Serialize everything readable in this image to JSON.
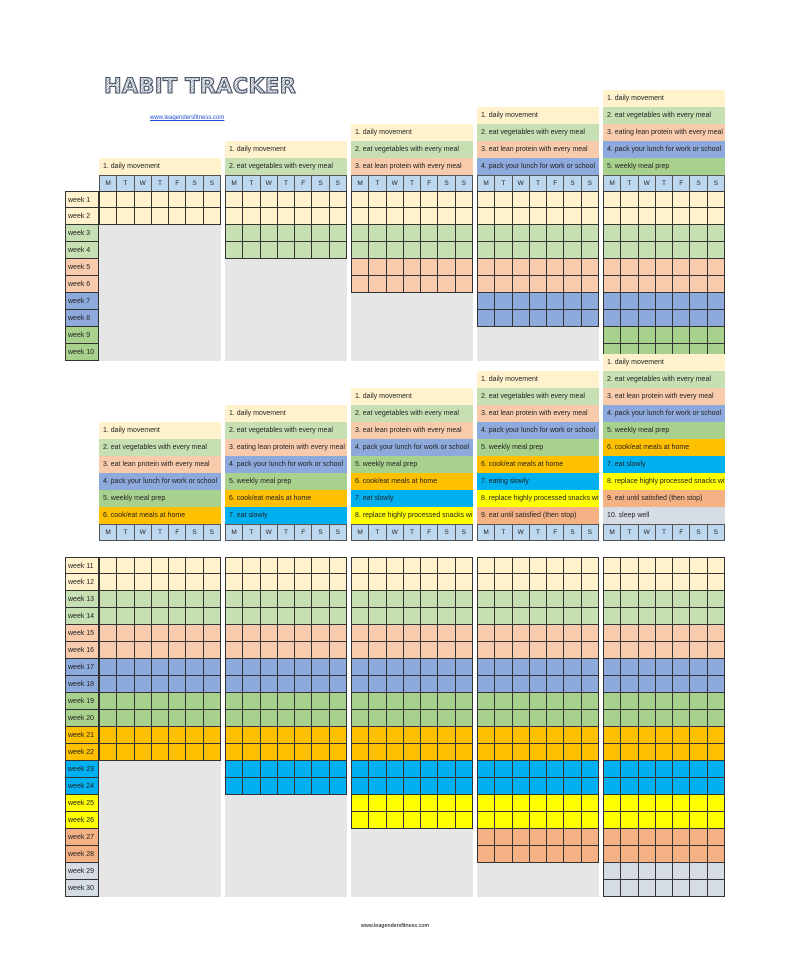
{
  "header": {
    "title": "HABIT TRACKER",
    "website_top": "www.leagendersfitness.com",
    "website_bottom": "www.leagendersfitness.com"
  },
  "colors": {
    "cream": "#fff2cc",
    "green": "#c6e0b4",
    "salmon": "#f8cbad",
    "blue": "#8ea9db",
    "mid_green": "#a9d18e",
    "orange": "#ffc000",
    "cyan": "#00b0f0",
    "yellow": "#ffff00",
    "peach": "#f4b183",
    "grey": "#d6dce4",
    "days_header": "#bdd7ee",
    "empty": "#e6e6e6"
  },
  "days": [
    "M",
    "T",
    "W",
    "T",
    "F",
    "S",
    "S"
  ],
  "sections": [
    {
      "week_start": 1,
      "week_count": 10,
      "week_colors": [
        "cream",
        "cream",
        "green",
        "green",
        "salmon",
        "salmon",
        "blue",
        "blue",
        "mid_green",
        "mid_green"
      ],
      "blocks": [
        {
          "habits": [
            {
              "label": "1. daily movement",
              "color": "cream"
            }
          ]
        },
        {
          "habits": [
            {
              "label": "1. daily movement",
              "color": "cream"
            },
            {
              "label": "2. eat vegetables with every meal",
              "color": "green"
            }
          ]
        },
        {
          "habits": [
            {
              "label": "1. daily movement",
              "color": "cream"
            },
            {
              "label": "2. eat vegetables with every meal",
              "color": "green"
            },
            {
              "label": "3. eat lean protein with every meal",
              "color": "salmon"
            }
          ]
        },
        {
          "habits": [
            {
              "label": "1. daily movement",
              "color": "cream"
            },
            {
              "label": "2. eat vegetables with every meal",
              "color": "green"
            },
            {
              "label": "3. eat lean protein with every meal",
              "color": "salmon"
            },
            {
              "label": "4. pack your lunch for work or school",
              "color": "blue"
            }
          ]
        },
        {
          "habits": [
            {
              "label": "1. daily movement",
              "color": "cream"
            },
            {
              "label": "2. eat vegetables with every meal",
              "color": "green"
            },
            {
              "label": "3. eating lean protein with every meal",
              "color": "salmon"
            },
            {
              "label": "4. pack your lunch for work or school",
              "color": "blue"
            },
            {
              "label": "5. weekly meal prep",
              "color": "mid_green"
            }
          ]
        }
      ]
    },
    {
      "week_start": 11,
      "week_count": 20,
      "week_colors": [
        "cream",
        "cream",
        "green",
        "green",
        "salmon",
        "salmon",
        "blue",
        "blue",
        "mid_green",
        "mid_green",
        "orange",
        "orange",
        "cyan",
        "cyan",
        "yellow",
        "yellow",
        "peach",
        "peach",
        "grey",
        "grey"
      ],
      "blocks": [
        {
          "habits": [
            {
              "label": "1. daily movement",
              "color": "cream"
            },
            {
              "label": "2. eat vegetables with every meal",
              "color": "green"
            },
            {
              "label": "3. eat lean protein with every meal",
              "color": "salmon"
            },
            {
              "label": "4. pack your lunch for work or school",
              "color": "blue"
            },
            {
              "label": "5. weekly meal prep",
              "color": "mid_green"
            },
            {
              "label": "6. cook/eat meals at home",
              "color": "orange"
            }
          ]
        },
        {
          "habits": [
            {
              "label": "1. daily movement",
              "color": "cream"
            },
            {
              "label": "2. eat vegetables with every meal",
              "color": "green"
            },
            {
              "label": "3. eating lean protein with every meal",
              "color": "salmon"
            },
            {
              "label": "4. pack your lunch for work or school",
              "color": "blue"
            },
            {
              "label": "5. weekly meal prep",
              "color": "mid_green"
            },
            {
              "label": "6. cook/eat meals at home",
              "color": "orange"
            },
            {
              "label": "7. eat slowly",
              "color": "cyan"
            }
          ]
        },
        {
          "habits": [
            {
              "label": "1. daily movement",
              "color": "cream"
            },
            {
              "label": "2. eat vegetables with every meal",
              "color": "green"
            },
            {
              "label": "3. eat lean protein with every meal",
              "color": "salmon"
            },
            {
              "label": "4. pack your lunch for work or school",
              "color": "blue"
            },
            {
              "label": "5. weekly meal prep",
              "color": "mid_green"
            },
            {
              "label": "6. cook/eat meals at home",
              "color": "orange"
            },
            {
              "label": "7. eat slowly",
              "color": "cyan"
            },
            {
              "label": "8. replace highly processed snacks with",
              "color": "yellow"
            }
          ]
        },
        {
          "habits": [
            {
              "label": "1. daily movement",
              "color": "cream"
            },
            {
              "label": "2. eat vegetables with every meal",
              "color": "green"
            },
            {
              "label": "3. eat lean protein with every meal",
              "color": "salmon"
            },
            {
              "label": "4. pack your lunch for work or school",
              "color": "blue"
            },
            {
              "label": "5. weekly meal prep",
              "color": "mid_green"
            },
            {
              "label": "6. cook/eat meals at home",
              "color": "orange"
            },
            {
              "label": "7. eating slowly",
              "color": "cyan"
            },
            {
              "label": "8. replace highly processed snacks with",
              "color": "yellow"
            },
            {
              "label": "9. eat until satisfied (then stop)",
              "color": "peach"
            }
          ]
        },
        {
          "habits": [
            {
              "label": "1. daily movement",
              "color": "cream"
            },
            {
              "label": "2. eat vegetables with every meal",
              "color": "green"
            },
            {
              "label": "3. eat lean protein with every meal",
              "color": "salmon"
            },
            {
              "label": "4. pack your lunch for work or school",
              "color": "blue"
            },
            {
              "label": "5. weekly meal prep",
              "color": "mid_green"
            },
            {
              "label": "6. cook/eat meals at home",
              "color": "orange"
            },
            {
              "label": "7. eat slowly",
              "color": "cyan"
            },
            {
              "label": "8. replace highly processed snacks with",
              "color": "yellow"
            },
            {
              "label": "9. eat until satisfied (then stop)",
              "color": "peach"
            },
            {
              "label": "10. sleep well",
              "color": "grey"
            }
          ]
        }
      ]
    }
  ]
}
